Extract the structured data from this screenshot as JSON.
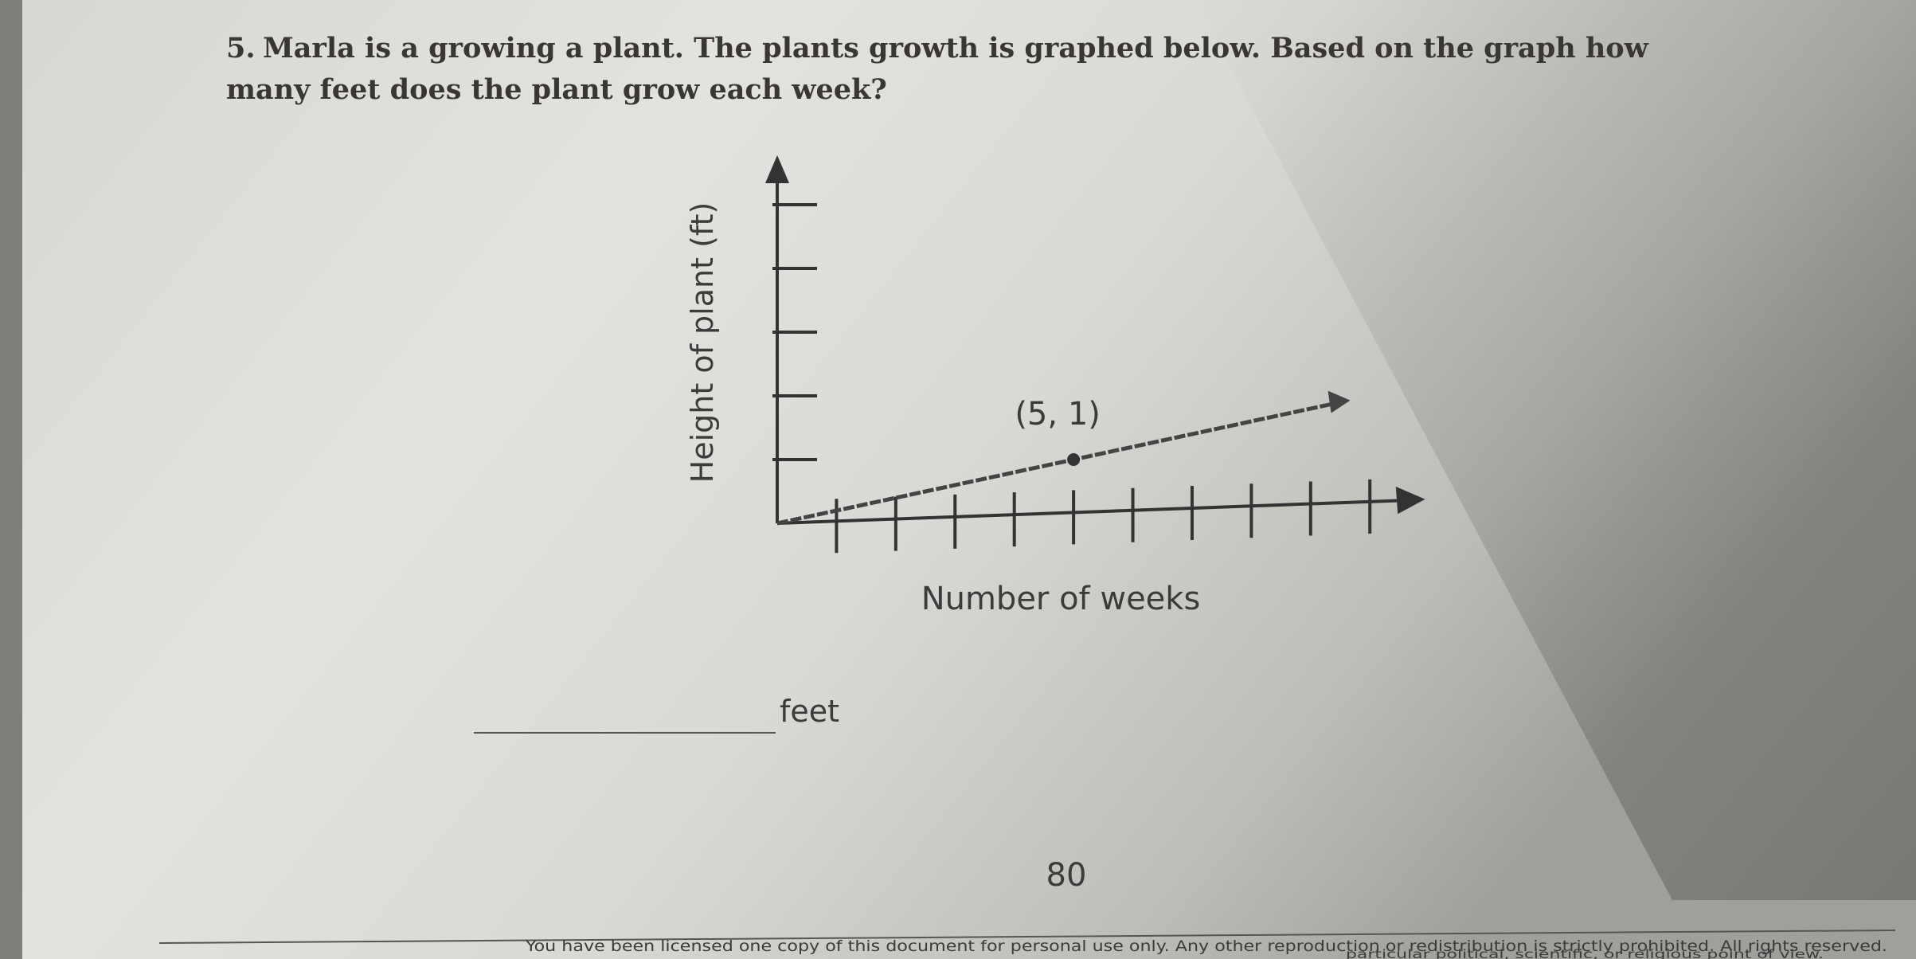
{
  "question": {
    "number": "5.",
    "line1": "Marla is a growing a plant. The plants growth is graphed below. Based on the graph how",
    "line2": "many feet does the plant grow each week?"
  },
  "graph": {
    "type": "line",
    "ylabel": "Height of plant (ft)",
    "xlabel": "Number of weeks",
    "xlim": [
      0,
      10.4
    ],
    "ylim": [
      0,
      5.8
    ],
    "xticks": [
      1,
      2,
      3,
      4,
      5,
      6,
      7,
      8,
      9,
      10
    ],
    "yticks": [
      1,
      2,
      3,
      4,
      5
    ],
    "x": [
      0,
      5,
      9.4
    ],
    "values": [
      0,
      1,
      1.88
    ],
    "point": {
      "x": 5,
      "y": 1,
      "label": "(5, 1)"
    }
  },
  "answer": {
    "unit": "feet"
  },
  "page_number": "80",
  "footer": {
    "line1": "You have been licensed one copy of this document for personal use only. Any other reproduction or redistribution is strictly prohibited. All rights reserved.",
    "line2": "particular political, scientific, or religious point of view."
  }
}
